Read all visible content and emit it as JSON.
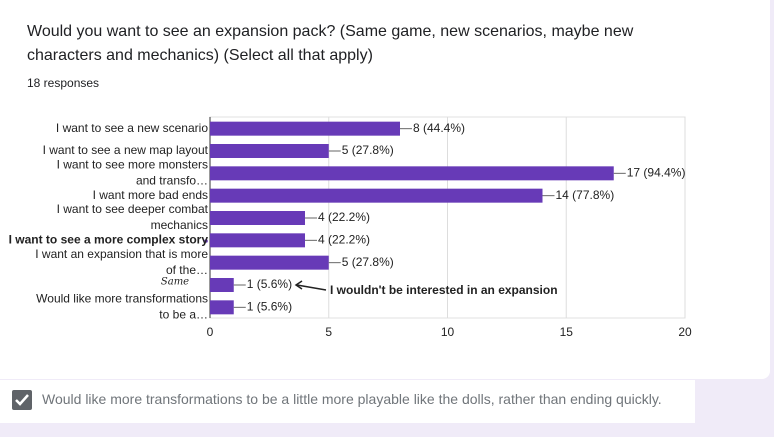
{
  "chart_data": {
    "type": "bar",
    "orientation": "horizontal",
    "title": "Would you want to see an expansion pack? (Same game, new scenarios, maybe new characters and mechanics) (Select all that apply)",
    "subtitle": "18 responses",
    "categories": [
      [
        "I want to see a new scenario"
      ],
      [
        "I want to see a new map layout"
      ],
      [
        "I want to see more monsters",
        "and transfo…"
      ],
      [
        "I want more bad ends"
      ],
      [
        "I want to see deeper combat",
        "mechanics"
      ],
      [
        "I want to see a more complex story"
      ],
      [
        "I want an expansion that is more",
        "of the…"
      ],
      null,
      [
        "Would like more transformations",
        "to be a…"
      ]
    ],
    "bold_categories": [
      5
    ],
    "values": [
      8,
      5,
      17,
      14,
      4,
      4,
      5,
      1,
      1
    ],
    "value_labels": [
      "8 (44.4%)",
      "5 (27.8%)",
      "17 (94.4%)",
      "14 (77.8%)",
      "4 (22.2%)",
      "4 (22.2%)",
      "5 (27.8%)",
      "1 (5.6%)",
      "1 (5.6%)"
    ],
    "color": "#673ab7",
    "xlim": [
      0,
      20
    ],
    "xticks": [
      0,
      5,
      10,
      15,
      20
    ],
    "grid": true,
    "annotations": [
      "Same",
      "I wouldn't be interested in an expansion"
    ]
  },
  "response_checkbox": {
    "label": "Would like more transformations to be a little more playable like the dolls, rather than ending quickly.",
    "checked": true
  }
}
